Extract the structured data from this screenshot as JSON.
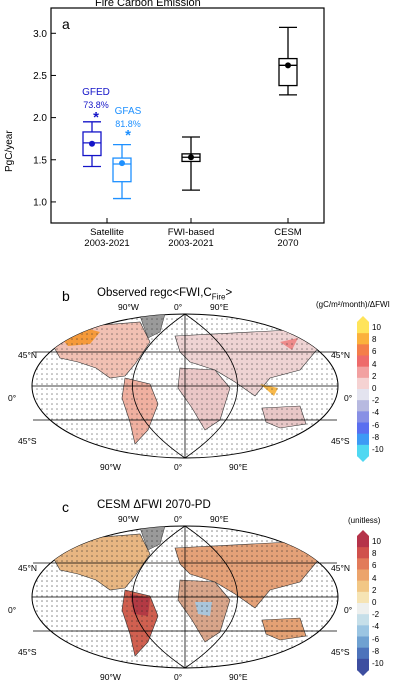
{
  "panel_a": {
    "title": "Fire Carbon Emission",
    "letter": "a",
    "ylabel": "PgC/year",
    "annotations": [
      {
        "name": "GFED",
        "value": "73.8%",
        "star": "*",
        "color": "#1414c8"
      },
      {
        "name": "GFAS",
        "value": "81.8%",
        "star": "*",
        "color": "#1e90ff"
      }
    ]
  },
  "panel_b": {
    "letter": "b",
    "title_main": "Observed regc<FWI,C",
    "title_sub": "Fire",
    "title_end": ">",
    "units": "(gC/m²/month)/ΔFWI"
  },
  "panel_c": {
    "letter": "c",
    "title": "CESM ΔFWI 2070-PD",
    "units": "(unitless)"
  },
  "map_labels": {
    "lon_top": [
      "90°W",
      "0°",
      "90°E"
    ],
    "lon_bottom": [
      "90°W",
      "0°",
      "90°E"
    ],
    "lat_left": [
      "45°N",
      "0°",
      "45°S"
    ],
    "lat_right": [
      "45°N",
      "0°",
      "45°S"
    ]
  },
  "colorbar_ticks": [
    "10",
    "8",
    "6",
    "4",
    "2",
    "0",
    "-2",
    "-4",
    "-6",
    "-8",
    "-10"
  ],
  "colorbar_b_colors": [
    "#ffe45a",
    "#fbb13c",
    "#f47e4a",
    "#ee6b6b",
    "#f2a1a1",
    "#f5d2d2",
    "#e3e3ef",
    "#b7b9e0",
    "#8890e5",
    "#5a6ff0",
    "#3d9af5",
    "#4fd8f2"
  ],
  "colorbar_c_colors": [
    "#b5334a",
    "#d0514c",
    "#e27b5a",
    "#eca46c",
    "#f2c785",
    "#f6e4b4",
    "#eef0ee",
    "#c6dfe9",
    "#9bc5e2",
    "#6fa1d1",
    "#4d73bb",
    "#3d4ea0"
  ],
  "chart_data": {
    "type": "box",
    "title": "Fire Carbon Emission",
    "ylabel": "PgC/year",
    "ylim": [
      0.75,
      3.3
    ],
    "yticks": [
      1.0,
      1.5,
      2.0,
      2.5,
      3.0
    ],
    "groups": [
      {
        "label": "Satellite",
        "sublabel": "2003-2021"
      },
      {
        "label": "FWI-based",
        "sublabel": "2003-2021"
      },
      {
        "label": "CESM",
        "sublabel": "2070"
      }
    ],
    "series": [
      {
        "name": "GFED",
        "group": 0,
        "offset": -1,
        "color": "#1414c8",
        "whisker_low": 1.42,
        "q1": 1.55,
        "median": 1.7,
        "mean": 1.69,
        "q3": 1.83,
        "whisker_high": 1.95
      },
      {
        "name": "GFAS",
        "group": 0,
        "offset": 1,
        "color": "#1e90ff",
        "whisker_low": 1.04,
        "q1": 1.24,
        "median": 1.45,
        "mean": 1.46,
        "q3": 1.52,
        "whisker_high": 1.68
      },
      {
        "name": "",
        "group": 1,
        "offset": 0,
        "color": "#000000",
        "whisker_low": 1.14,
        "q1": 1.48,
        "median": 1.53,
        "mean": 1.53,
        "q3": 1.57,
        "whisker_high": 1.77
      },
      {
        "name": "",
        "group": 2,
        "offset": 0,
        "color": "#000000",
        "whisker_low": 2.27,
        "q1": 2.38,
        "median": 2.62,
        "mean": 2.62,
        "q3": 2.7,
        "whisker_high": 3.07
      }
    ]
  }
}
